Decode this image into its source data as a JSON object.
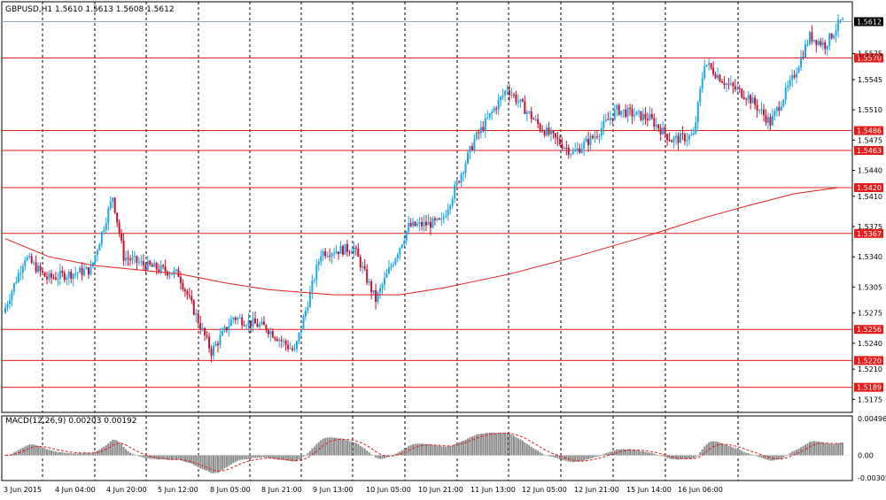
{
  "window": {
    "header_label": "GBPUSD,H1  1.5610 1.5613 1.5608 1.5612",
    "macd_label": "MACD(12,26,9) 0.00203 0.00192"
  },
  "colors": {
    "bull": "#1ea7e8",
    "bear": "#c8102e",
    "ma": "#e31c1c",
    "support_resistance": "#e31c1c",
    "grid": "#000000",
    "macd_hist": "#8c8c8c",
    "macd_signal": "#e31c1c",
    "price_tag_bg": "#000000"
  },
  "chart_data": [
    {
      "type": "candlestick",
      "symbol": "GBPUSD",
      "timeframe": "H1",
      "ylim": [
        1.516,
        1.5635
      ],
      "current_price": "1.5612",
      "y_ticks": [
        "1.5175",
        "1.5210",
        "1.5240",
        "1.5275",
        "1.5305",
        "1.5340",
        "1.5375",
        "1.5410",
        "1.5440",
        "1.5475",
        "1.5510",
        "1.5545",
        "1.5575"
      ],
      "x_ticks": [
        "3 Jun 2015",
        "4 Jun 04:00",
        "4 Jun 20:00",
        "5 Jun 12:00",
        "8 Jun 05:00",
        "8 Jun 21:00",
        "9 Jun 13:00",
        "10 Jun 05:00",
        "10 Jun 21:00",
        "11 Jun 13:00",
        "12 Jun 05:00",
        "12 Jun 21:00",
        "15 Jun 14:00",
        "16 Jun 06:00"
      ],
      "horizontal_levels": [
        "1.5570",
        "1.5486",
        "1.5463",
        "1.5420",
        "1.5367",
        "1.5256",
        "1.5220",
        "1.5189"
      ],
      "moving_average": [
        [
          0,
          1.5361
        ],
        [
          20,
          1.534
        ],
        [
          40,
          1.533
        ],
        [
          60,
          1.5325
        ],
        [
          80,
          1.532
        ],
        [
          100,
          1.531
        ],
        [
          120,
          1.5302
        ],
        [
          150,
          1.5296
        ],
        [
          180,
          1.5296
        ],
        [
          200,
          1.5304
        ],
        [
          230,
          1.532
        ],
        [
          260,
          1.534
        ],
        [
          290,
          1.5362
        ],
        [
          320,
          1.5386
        ],
        [
          340,
          1.54
        ],
        [
          360,
          1.5413
        ],
        [
          380,
          1.542
        ]
      ],
      "candles_bullish_share": 0.52,
      "anchor_path": [
        [
          0,
          1.5275
        ],
        [
          10,
          1.534
        ],
        [
          20,
          1.5315
        ],
        [
          40,
          1.5325
        ],
        [
          50,
          1.541
        ],
        [
          55,
          1.534
        ],
        [
          65,
          1.533
        ],
        [
          80,
          1.532
        ],
        [
          95,
          1.523
        ],
        [
          105,
          1.527
        ],
        [
          120,
          1.5258
        ],
        [
          133,
          1.523
        ],
        [
          145,
          1.5345
        ],
        [
          160,
          1.535
        ],
        [
          170,
          1.529
        ],
        [
          185,
          1.5375
        ],
        [
          200,
          1.538
        ],
        [
          215,
          1.5475
        ],
        [
          230,
          1.5535
        ],
        [
          245,
          1.549
        ],
        [
          260,
          1.546
        ],
        [
          270,
          1.548
        ],
        [
          280,
          1.551
        ],
        [
          295,
          1.55
        ],
        [
          305,
          1.5475
        ],
        [
          315,
          1.548
        ],
        [
          320,
          1.5565
        ],
        [
          330,
          1.554
        ],
        [
          340,
          1.5525
        ],
        [
          350,
          1.5495
        ],
        [
          360,
          1.5545
        ],
        [
          368,
          1.5595
        ],
        [
          375,
          1.5585
        ],
        [
          382,
          1.5612
        ]
      ]
    },
    {
      "type": "bar",
      "name": "MACD(12,26,9)",
      "ylim": [
        -0.00305,
        0.00496
      ],
      "y_ticks": [
        "0.00496",
        "0.00",
        "-0.00305"
      ],
      "value": "0.00203",
      "signal": "0.00192"
    }
  ]
}
